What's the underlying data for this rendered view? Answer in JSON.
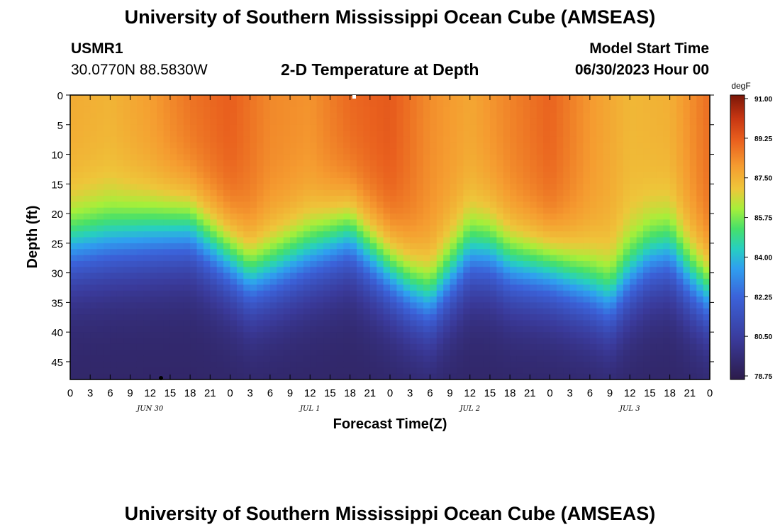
{
  "page": {
    "title_top": "University of Southern Mississippi Ocean Cube (AMSEAS)",
    "title_bottom": "University of Southern Mississippi Ocean Cube (AMSEAS)",
    "station_id": "USMR1",
    "station_coords": "30.0770N  88.5830W",
    "plot_title": "2-D Temperature at Depth",
    "model_start_label": "Model Start Time",
    "model_start_value": "06/30/2023 Hour 00"
  },
  "chart_data": {
    "type": "heatmap",
    "title": "2-D Temperature at Depth",
    "xlabel": "Forecast Time(Z)",
    "ylabel": "Depth (ft)",
    "x_hours_range": [
      0,
      96
    ],
    "x_tick_labels": [
      "0",
      "3",
      "6",
      "9",
      "12",
      "15",
      "18",
      "21",
      "0",
      "3",
      "6",
      "9",
      "12",
      "15",
      "18",
      "21",
      "0",
      "3",
      "6",
      "9",
      "12",
      "15",
      "18",
      "21",
      "0",
      "3",
      "6",
      "9",
      "12",
      "15",
      "18",
      "21",
      "0"
    ],
    "date_labels": [
      {
        "label": "JUN 30",
        "hour": 12
      },
      {
        "label": "JUL 1",
        "hour": 36
      },
      {
        "label": "JUL 2",
        "hour": 60
      },
      {
        "label": "JUL 3",
        "hour": 84
      }
    ],
    "ylim": [
      0,
      48
    ],
    "y_ticks": [
      0,
      5,
      10,
      15,
      20,
      25,
      30,
      35,
      40,
      45
    ],
    "colorbar": {
      "unit": "degF",
      "min": 78.75,
      "max": 91.0,
      "tick_labels": [
        "91.00",
        "89.25",
        "87.50",
        "85.75",
        "84.00",
        "82.25",
        "80.50",
        "78.75"
      ]
    },
    "thermocline_depth_ft": {
      "hours": [
        0,
        6,
        12,
        18,
        24,
        27,
        30,
        36,
        42,
        51,
        54,
        57,
        60,
        63,
        66,
        72,
        78,
        81,
        84,
        87,
        90,
        93,
        96
      ],
      "values": [
        26,
        25,
        24,
        23,
        28,
        31,
        30,
        27,
        24,
        33,
        35,
        31,
        27,
        27,
        29,
        30,
        33,
        35,
        31,
        28,
        27,
        31,
        34
      ]
    },
    "surface_temp_degF": {
      "hours": [
        0,
        6,
        12,
        18,
        24,
        30,
        36,
        42,
        48,
        54,
        60,
        66,
        72,
        78,
        84,
        90,
        96
      ],
      "values": [
        87.6,
        87.4,
        87.9,
        88.7,
        89.1,
        88.3,
        88.1,
        88.9,
        89.2,
        88.2,
        87.7,
        88.4,
        89.0,
        88.0,
        87.3,
        87.5,
        88.8
      ]
    },
    "bottom_temp_degF": 79.4
  }
}
